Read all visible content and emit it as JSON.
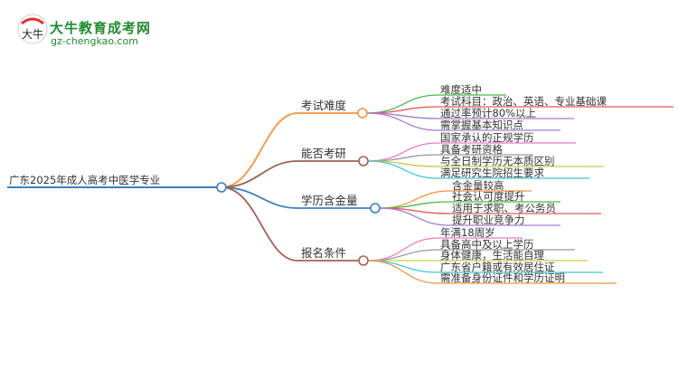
{
  "logo": {
    "brand": "大牛教育成考网",
    "url": "gz-chengkao.com",
    "mark_text": "大牛"
  },
  "root": {
    "label": "广东2025年成人高考中医学专业",
    "color": "#3a7fc1"
  },
  "branches": [
    {
      "label": "考试难度",
      "color": "#f5923e",
      "leaves": [
        {
          "label": "难度适中",
          "color": "#4cb84c"
        },
        {
          "label": "考试科目：政治、英语、专业基础课",
          "color": "#e05a5a"
        },
        {
          "label": "通过率预计80%以上",
          "color": "#a77ad0"
        },
        {
          "label": "需掌握基本知识点",
          "color": "#a77ad0"
        }
      ]
    },
    {
      "label": "能否考研",
      "color": "#a0624f",
      "leaves": [
        {
          "label": "国家承认的正规学历",
          "color": "#e87ac8"
        },
        {
          "label": "具备考研资格",
          "color": "#9a9a9a"
        },
        {
          "label": "与全日制学历无本质区别",
          "color": "#c9c94a"
        },
        {
          "label": "满足研究生院招生要求",
          "color": "#3cc8d8"
        }
      ]
    },
    {
      "label": "学历含金量",
      "color": "#3a7fc1",
      "leaves": [
        {
          "label": "含金量较高",
          "color": "#f5923e"
        },
        {
          "label": "社会认可度提升",
          "color": "#4cb84c"
        },
        {
          "label": "适用于求职、考公务员",
          "color": "#e05a5a"
        },
        {
          "label": "提升职业竞争力",
          "color": "#a77ad0"
        }
      ]
    },
    {
      "label": "报名条件",
      "color": "#a0624f",
      "leaves": [
        {
          "label": "年满18周岁",
          "color": "#e87ac8"
        },
        {
          "label": "具备高中及以上学历",
          "color": "#9a9a9a"
        },
        {
          "label": "身体健康，生活能自理",
          "color": "#c9c94a"
        },
        {
          "label": "广东省户籍或有效居住证",
          "color": "#3cc8d8"
        },
        {
          "label": "需准备身份证件和学历证明",
          "color": "#f5923e"
        }
      ]
    }
  ]
}
